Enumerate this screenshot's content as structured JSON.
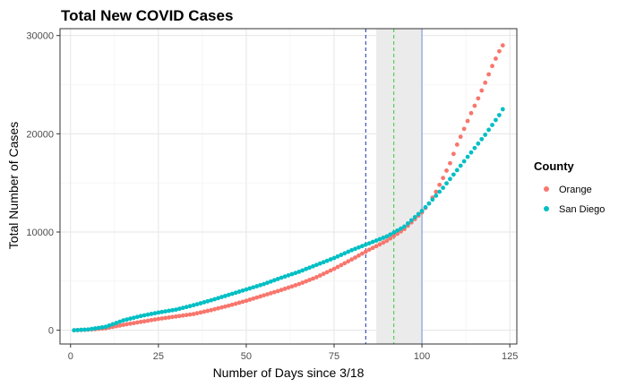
{
  "chart_data": {
    "type": "scatter",
    "title": "Total New COVID Cases",
    "xlabel": "Number of Days since 3/18",
    "ylabel": "Total Number of Cases",
    "xlim": [
      -3,
      127
    ],
    "ylim": [
      -1400,
      30700
    ],
    "x_ticks": [
      0,
      25,
      50,
      75,
      100,
      125
    ],
    "y_ticks": [
      0,
      10000,
      20000,
      30000
    ],
    "x_tick_labels": [
      "0",
      "25",
      "50",
      "75",
      "100",
      "125"
    ],
    "y_tick_labels": [
      "0",
      "10000",
      "20000",
      "30000"
    ],
    "grid": true,
    "legend": {
      "title": "County",
      "placement": "right"
    },
    "shaded_region": {
      "x_start": 87,
      "x_end": 100,
      "color": "#ebebeb"
    },
    "reference_lines": [
      {
        "x": 84,
        "style": "dashed",
        "color": "#1a2fa8"
      },
      {
        "x": 92,
        "style": "dashed",
        "color": "#33cc33"
      },
      {
        "x": 100,
        "style": "solid",
        "color": "#6b8fd6"
      }
    ],
    "series": [
      {
        "name": "Orange",
        "color": "#F8766D",
        "points": [
          [
            1,
            0
          ],
          [
            5,
            60
          ],
          [
            10,
            200
          ],
          [
            15,
            550
          ],
          [
            20,
            850
          ],
          [
            25,
            1150
          ],
          [
            30,
            1400
          ],
          [
            35,
            1650
          ],
          [
            40,
            2050
          ],
          [
            45,
            2500
          ],
          [
            50,
            3000
          ],
          [
            55,
            3550
          ],
          [
            60,
            4100
          ],
          [
            65,
            4700
          ],
          [
            70,
            5400
          ],
          [
            75,
            6250
          ],
          [
            80,
            7200
          ],
          [
            85,
            8200
          ],
          [
            90,
            9100
          ],
          [
            95,
            10300
          ],
          [
            100,
            12000
          ],
          [
            102,
            12900
          ],
          [
            104,
            14100
          ],
          [
            106,
            15500
          ],
          [
            108,
            17000
          ],
          [
            110,
            18900
          ],
          [
            112,
            20500
          ],
          [
            114,
            22100
          ],
          [
            116,
            23600
          ],
          [
            118,
            25200
          ],
          [
            120,
            26900
          ],
          [
            122,
            28400
          ],
          [
            123,
            29000
          ]
        ]
      },
      {
        "name": "San Diego",
        "color": "#00BFC4",
        "points": [
          [
            1,
            0
          ],
          [
            5,
            80
          ],
          [
            10,
            350
          ],
          [
            15,
            1000
          ],
          [
            20,
            1450
          ],
          [
            25,
            1800
          ],
          [
            30,
            2100
          ],
          [
            35,
            2550
          ],
          [
            40,
            3050
          ],
          [
            45,
            3600
          ],
          [
            50,
            4150
          ],
          [
            55,
            4700
          ],
          [
            60,
            5350
          ],
          [
            65,
            5950
          ],
          [
            70,
            6650
          ],
          [
            75,
            7350
          ],
          [
            80,
            8150
          ],
          [
            85,
            8850
          ],
          [
            90,
            9550
          ],
          [
            95,
            10550
          ],
          [
            100,
            12150
          ],
          [
            102,
            12900
          ],
          [
            104,
            13700
          ],
          [
            106,
            14500
          ],
          [
            108,
            15400
          ],
          [
            110,
            16300
          ],
          [
            112,
            17200
          ],
          [
            114,
            18100
          ],
          [
            116,
            19000
          ],
          [
            118,
            19900
          ],
          [
            120,
            20900
          ],
          [
            122,
            21900
          ],
          [
            123,
            22500
          ]
        ]
      }
    ]
  }
}
